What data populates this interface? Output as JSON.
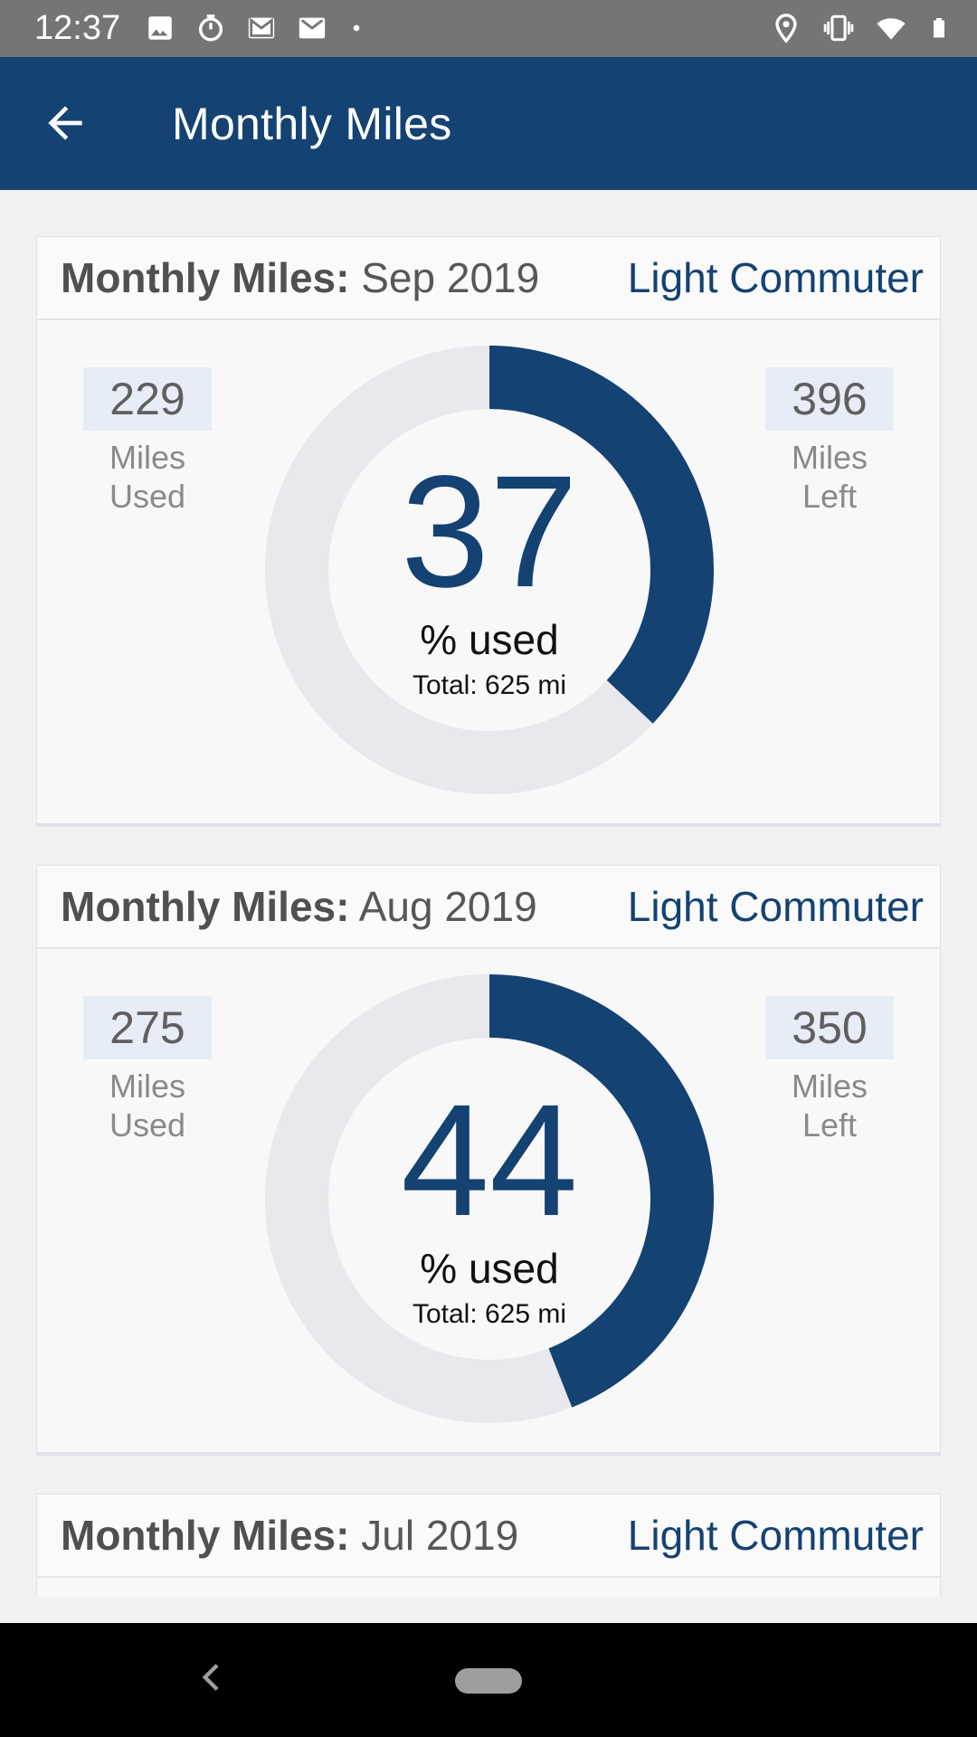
{
  "status_bar": {
    "time": "12:37",
    "left_icons": [
      "image-icon",
      "timer-icon",
      "gmail-icon",
      "gmail-icon",
      "dot-icon"
    ],
    "right_icons": [
      "location-icon",
      "vibrate-icon",
      "wifi-icon",
      "battery-icon"
    ]
  },
  "app_bar": {
    "title": "Monthly Miles"
  },
  "cards": [
    {
      "label": "Monthly Miles:",
      "month": "Sep 2019",
      "plan": "Light Commuter",
      "used_value": "229",
      "used_label_1": "Miles",
      "used_label_2": "Used",
      "left_value": "396",
      "left_label_1": "Miles",
      "left_label_2": "Left",
      "percent": "37",
      "percent_fraction": 0.37,
      "percent_label": "% used",
      "total": "Total: 625 mi"
    },
    {
      "label": "Monthly Miles:",
      "month": "Aug 2019",
      "plan": "Light Commuter",
      "used_value": "275",
      "used_label_1": "Miles",
      "used_label_2": "Used",
      "left_value": "350",
      "left_label_1": "Miles",
      "left_label_2": "Left",
      "percent": "44",
      "percent_fraction": 0.44,
      "percent_label": "% used",
      "total": "Total: 625 mi"
    },
    {
      "label": "Monthly Miles:",
      "month": "Jul 2019",
      "plan": "Light Commuter"
    }
  ],
  "colors": {
    "primary": "#144272",
    "gauge_track": "#e8e8ed",
    "stat_box": "#e6edf7"
  }
}
